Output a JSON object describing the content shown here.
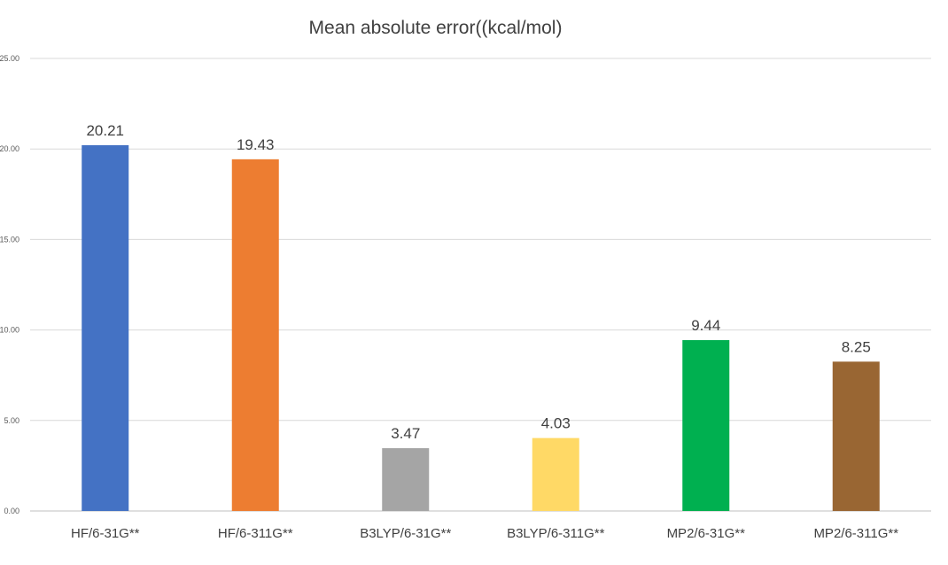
{
  "chart_data": {
    "type": "bar",
    "title": "Mean absolute error((kcal/mol)",
    "xlabel": "",
    "ylabel": "",
    "categories": [
      "HF/6-31G**",
      "HF/6-311G**",
      "B3LYP/6-31G**",
      "B3LYP/6-311G**",
      "MP2/6-31G**",
      "MP2/6-311G**"
    ],
    "values": [
      20.21,
      19.43,
      3.47,
      4.03,
      9.44,
      8.25
    ],
    "value_labels": [
      "20.21",
      "19.43",
      "3.47",
      "4.03",
      "9.44",
      "8.25"
    ],
    "colors": [
      "#4472C4",
      "#ED7D31",
      "#A5A5A5",
      "#FFD966",
      "#00B050",
      "#996633"
    ],
    "ylim": [
      0,
      25
    ],
    "yticks": [
      0,
      5,
      10,
      15,
      20,
      25
    ],
    "ytick_labels": [
      "0.00",
      "5.00",
      "10.00",
      "15.00",
      "20.00",
      "25.00"
    ],
    "grid": true,
    "legend": "none"
  }
}
